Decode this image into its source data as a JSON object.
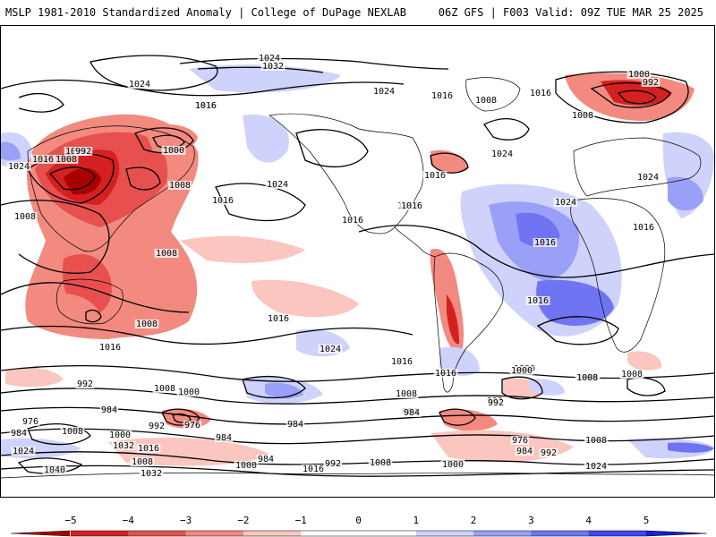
{
  "header": {
    "title_left": "MSLP 1981-2010 Standardized Anomaly | College of DuPage NEXLAB",
    "title_right": "06Z GFS | F003 Valid: 09Z TUE MAR 25 2025"
  },
  "colors": {
    "neg5": "#a80000",
    "neg4": "#d42020",
    "neg3": "#e85050",
    "neg2": "#f28a80",
    "neg1": "#fbc6bf",
    "zero": "#ffffff",
    "pos1": "#cfd2fb",
    "pos2": "#9aa0f7",
    "pos3": "#6f74f2",
    "pos4": "#4046ee",
    "pos5": "#1a1fd0"
  },
  "colorbar": {
    "ticks": [
      "−5",
      "−4",
      "−3",
      "−2",
      "−1",
      "0",
      "1",
      "2",
      "3",
      "4",
      "5"
    ]
  },
  "isobar_labels": [
    {
      "text": "1024"
    },
    {
      "text": "1032"
    },
    {
      "text": "1024"
    },
    {
      "text": "1016"
    },
    {
      "text": "1024"
    },
    {
      "text": "1016"
    },
    {
      "text": "1016"
    },
    {
      "text": "1008"
    },
    {
      "text": "1000"
    },
    {
      "text": "992"
    },
    {
      "text": "1024"
    },
    {
      "text": "1016"
    },
    {
      "text": "1008"
    },
    {
      "text": "1000"
    },
    {
      "text": "1008"
    },
    {
      "text": "1016"
    },
    {
      "text": "1024"
    },
    {
      "text": "1016"
    },
    {
      "text": "1024"
    },
    {
      "text": "1016"
    },
    {
      "text": "1016"
    },
    {
      "text": "1008"
    },
    {
      "text": "1016"
    },
    {
      "text": "1016"
    },
    {
      "text": "1024"
    },
    {
      "text": "1000"
    },
    {
      "text": "992"
    },
    {
      "text": "1008"
    },
    {
      "text": "1024"
    },
    {
      "text": "1016"
    },
    {
      "text": "1016"
    },
    {
      "text": "1016"
    },
    {
      "text": "1008"
    },
    {
      "text": "1008"
    },
    {
      "text": "1016"
    },
    {
      "text": "1024"
    },
    {
      "text": "1016"
    },
    {
      "text": "1016"
    },
    {
      "text": "1000"
    },
    {
      "text": "1008"
    },
    {
      "text": "1016"
    },
    {
      "text": "992"
    },
    {
      "text": "1008"
    },
    {
      "text": "1000"
    },
    {
      "text": "984"
    },
    {
      "text": "1008"
    },
    {
      "text": "984"
    },
    {
      "text": "992"
    },
    {
      "text": "984"
    },
    {
      "text": "976"
    },
    {
      "text": "984"
    },
    {
      "text": "1008"
    },
    {
      "text": "1000"
    },
    {
      "text": "992"
    },
    {
      "text": "976"
    },
    {
      "text": "984"
    },
    {
      "text": "1032"
    },
    {
      "text": "1016"
    },
    {
      "text": "1008"
    },
    {
      "text": "1024"
    },
    {
      "text": "1040"
    },
    {
      "text": "1032"
    },
    {
      "text": "984"
    },
    {
      "text": "1000"
    },
    {
      "text": "992"
    },
    {
      "text": "1016"
    },
    {
      "text": "1008"
    },
    {
      "text": "1000"
    },
    {
      "text": "976"
    },
    {
      "text": "984"
    },
    {
      "text": "992"
    },
    {
      "text": "1008"
    },
    {
      "text": "1024"
    },
    {
      "text": "1000"
    },
    {
      "text": "1008"
    },
    {
      "text": "1008"
    },
    {
      "text": "984"
    },
    {
      "text": "992"
    }
  ]
}
